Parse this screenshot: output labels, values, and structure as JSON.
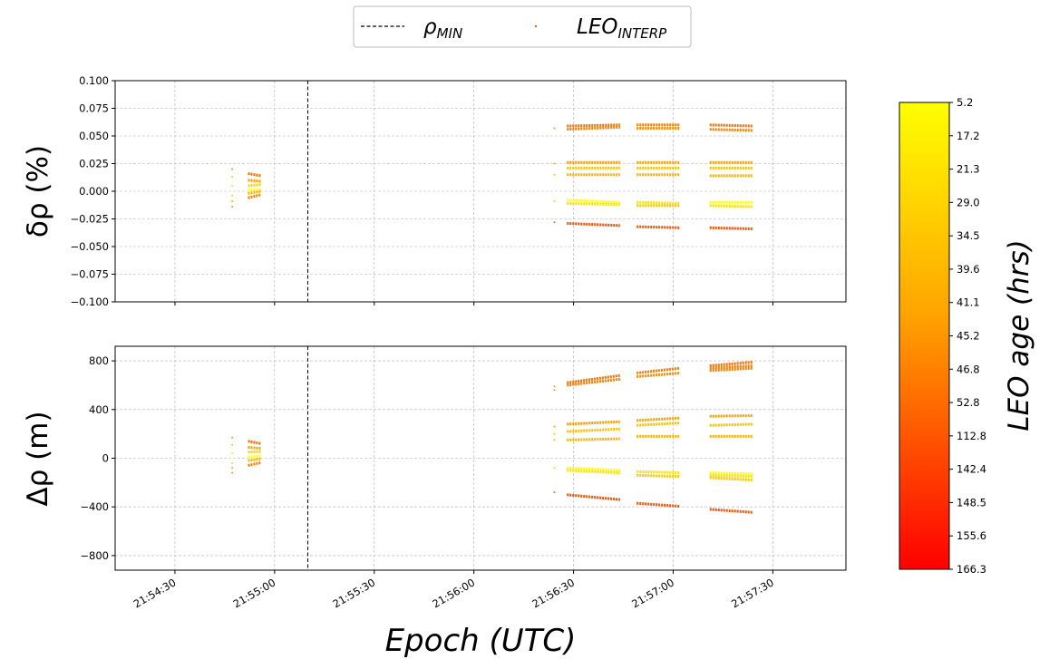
{
  "legend": {
    "entries": [
      {
        "label": "ρ",
        "sub": "MIN",
        "style": "dashed-line",
        "color": "#000000"
      },
      {
        "label": "LEO",
        "sub": "INTERP",
        "style": "point",
        "color": "#ff4500"
      }
    ]
  },
  "xaxis": {
    "label": "Epoch (UTC)",
    "ticks": [
      "21:54:30",
      "21:55:00",
      "21:55:30",
      "21:56:00",
      "21:56:30",
      "21:57:00",
      "21:57:30"
    ],
    "tick_seconds": [
      30,
      60,
      90,
      120,
      150,
      180,
      210
    ],
    "range_seconds": [
      12,
      232
    ]
  },
  "colorbar": {
    "label": "LEO age (hrs)",
    "ticks": [
      "5.2",
      "17.2",
      "21.3",
      "29.0",
      "34.5",
      "39.6",
      "41.1",
      "45.2",
      "46.8",
      "52.8",
      "112.8",
      "142.4",
      "148.5",
      "155.6",
      "166.3"
    ],
    "colors": [
      "#ffff00",
      "#ffa500",
      "#ff0000"
    ]
  },
  "vline_seconds": 70,
  "chart_data": [
    {
      "type": "scatter",
      "ylabel": "δρ (%)",
      "ylim": [
        -0.1,
        0.1
      ],
      "yticks": [
        -0.1,
        -0.075,
        -0.05,
        -0.025,
        0.0,
        0.025,
        0.05,
        0.075,
        0.1
      ],
      "ytick_labels": [
        "−0.100",
        "−0.075",
        "−0.050",
        "−0.025",
        "0.000",
        "0.025",
        "0.050",
        "0.075",
        "0.100"
      ],
      "grid": true,
      "segments": [
        {
          "x": [
            47,
            47.5
          ],
          "y": [
            0.02,
            0.02
          ],
          "color": "#ff8c00"
        },
        {
          "x": [
            47,
            47.5
          ],
          "y": [
            0.013,
            0.013
          ],
          "color": "#ffc000"
        },
        {
          "x": [
            47,
            47.5
          ],
          "y": [
            0.005,
            0.005
          ],
          "color": "#ffe000"
        },
        {
          "x": [
            47,
            47.5
          ],
          "y": [
            -0.004,
            -0.004
          ],
          "color": "#ffd000"
        },
        {
          "x": [
            47,
            47.5
          ],
          "y": [
            -0.009,
            -0.009
          ],
          "color": "#ffa500"
        },
        {
          "x": [
            47,
            47.5
          ],
          "y": [
            -0.014,
            -0.014
          ],
          "color": "#ff8c00"
        },
        {
          "x": [
            52,
            56
          ],
          "y": [
            0.016,
            0.014
          ],
          "color": "#ff6a00"
        },
        {
          "x": [
            52,
            56
          ],
          "y": [
            0.01,
            0.009
          ],
          "color": "#ff9a00"
        },
        {
          "x": [
            52,
            56
          ],
          "y": [
            0.005,
            0.006
          ],
          "color": "#ffd000"
        },
        {
          "x": [
            52,
            56
          ],
          "y": [
            0.001,
            0.002
          ],
          "color": "#ffff20"
        },
        {
          "x": [
            52,
            56
          ],
          "y": [
            -0.002,
            0.0
          ],
          "color": "#ffb000"
        },
        {
          "x": [
            52,
            56
          ],
          "y": [
            -0.006,
            -0.003
          ],
          "color": "#ff8000"
        },
        {
          "x": [
            144,
            144.5
          ],
          "y": [
            0.057,
            0.057
          ],
          "color": "#ff8c00"
        },
        {
          "x": [
            144,
            144.5
          ],
          "y": [
            0.025,
            0.025
          ],
          "color": "#ffa000"
        },
        {
          "x": [
            144,
            144.5
          ],
          "y": [
            0.015,
            0.015
          ],
          "color": "#ffc000"
        },
        {
          "x": [
            144,
            144.5
          ],
          "y": [
            -0.009,
            -0.009
          ],
          "color": "#ffd000"
        },
        {
          "x": [
            144,
            144.5
          ],
          "y": [
            -0.028,
            -0.028
          ],
          "color": "#ff5a00"
        },
        {
          "x": [
            148,
            164
          ],
          "y": [
            0.059,
            0.06
          ],
          "color": "#ff7000"
        },
        {
          "x": [
            148,
            164
          ],
          "y": [
            0.056,
            0.058
          ],
          "color": "#ff8000"
        },
        {
          "x": [
            148,
            164
          ],
          "y": [
            0.026,
            0.026
          ],
          "color": "#ff9a00"
        },
        {
          "x": [
            148,
            164
          ],
          "y": [
            0.021,
            0.021
          ],
          "color": "#ffc000"
        },
        {
          "x": [
            148,
            164
          ],
          "y": [
            0.015,
            0.015
          ],
          "color": "#ffb000"
        },
        {
          "x": [
            148,
            164
          ],
          "y": [
            -0.008,
            -0.01
          ],
          "color": "#ffff00"
        },
        {
          "x": [
            148,
            164
          ],
          "y": [
            -0.011,
            -0.012
          ],
          "color": "#ffe000"
        },
        {
          "x": [
            148,
            164
          ],
          "y": [
            -0.029,
            -0.031
          ],
          "color": "#ff5000"
        },
        {
          "x": [
            169,
            182
          ],
          "y": [
            0.06,
            0.06
          ],
          "color": "#ff7a00"
        },
        {
          "x": [
            169,
            182
          ],
          "y": [
            0.057,
            0.057
          ],
          "color": "#ff8a00"
        },
        {
          "x": [
            169,
            182
          ],
          "y": [
            0.026,
            0.026
          ],
          "color": "#ffa000"
        },
        {
          "x": [
            169,
            182
          ],
          "y": [
            0.021,
            0.021
          ],
          "color": "#ffc000"
        },
        {
          "x": [
            169,
            182
          ],
          "y": [
            0.015,
            0.015
          ],
          "color": "#ffb000"
        },
        {
          "x": [
            169,
            182
          ],
          "y": [
            -0.01,
            -0.011
          ],
          "color": "#ffe000"
        },
        {
          "x": [
            169,
            182
          ],
          "y": [
            -0.013,
            -0.013
          ],
          "color": "#ffc800"
        },
        {
          "x": [
            169,
            182
          ],
          "y": [
            -0.032,
            -0.033
          ],
          "color": "#ff5500"
        },
        {
          "x": [
            191,
            204
          ],
          "y": [
            0.06,
            0.059
          ],
          "color": "#ff7000"
        },
        {
          "x": [
            191,
            204
          ],
          "y": [
            0.056,
            0.055
          ],
          "color": "#ff8000"
        },
        {
          "x": [
            191,
            204
          ],
          "y": [
            0.026,
            0.026
          ],
          "color": "#ffa000"
        },
        {
          "x": [
            191,
            204
          ],
          "y": [
            0.021,
            0.021
          ],
          "color": "#ffc000"
        },
        {
          "x": [
            191,
            204
          ],
          "y": [
            0.014,
            0.014
          ],
          "color": "#ffb000"
        },
        {
          "x": [
            191,
            204
          ],
          "y": [
            -0.01,
            -0.01
          ],
          "color": "#ffff00"
        },
        {
          "x": [
            191,
            204
          ],
          "y": [
            -0.013,
            -0.014
          ],
          "color": "#ffe000"
        },
        {
          "x": [
            191,
            204
          ],
          "y": [
            -0.033,
            -0.034
          ],
          "color": "#ff5000"
        }
      ]
    },
    {
      "type": "scatter",
      "ylabel": "Δρ (m)",
      "ylim": [
        -920,
        920
      ],
      "yticks": [
        -800,
        -400,
        0,
        400,
        800
      ],
      "ytick_labels": [
        "−800",
        "−400",
        "0",
        "400",
        "800"
      ],
      "grid": true,
      "segments": [
        {
          "x": [
            47,
            47.5
          ],
          "y": [
            170,
            170
          ],
          "color": "#ff8c00"
        },
        {
          "x": [
            47,
            47.5
          ],
          "y": [
            110,
            110
          ],
          "color": "#ffc000"
        },
        {
          "x": [
            47,
            47.5
          ],
          "y": [
            40,
            40
          ],
          "color": "#ffe000"
        },
        {
          "x": [
            47,
            47.5
          ],
          "y": [
            -40,
            -40
          ],
          "color": "#ffd000"
        },
        {
          "x": [
            47,
            47.5
          ],
          "y": [
            -80,
            -80
          ],
          "color": "#ffa500"
        },
        {
          "x": [
            47,
            47.5
          ],
          "y": [
            -120,
            -120
          ],
          "color": "#ff8c00"
        },
        {
          "x": [
            52,
            56
          ],
          "y": [
            140,
            120
          ],
          "color": "#ff6a00"
        },
        {
          "x": [
            52,
            56
          ],
          "y": [
            90,
            80
          ],
          "color": "#ff9a00"
        },
        {
          "x": [
            52,
            56
          ],
          "y": [
            50,
            55
          ],
          "color": "#ffd000"
        },
        {
          "x": [
            52,
            56
          ],
          "y": [
            10,
            20
          ],
          "color": "#ffff20"
        },
        {
          "x": [
            52,
            56
          ],
          "y": [
            -20,
            -5
          ],
          "color": "#ffb000"
        },
        {
          "x": [
            52,
            56
          ],
          "y": [
            -60,
            -35
          ],
          "color": "#ff8000"
        },
        {
          "x": [
            144,
            144.5
          ],
          "y": [
            590,
            590
          ],
          "color": "#ff8c00"
        },
        {
          "x": [
            144,
            144.5
          ],
          "y": [
            560,
            560
          ],
          "color": "#ff8c00"
        },
        {
          "x": [
            144,
            144.5
          ],
          "y": [
            260,
            260
          ],
          "color": "#ffa000"
        },
        {
          "x": [
            144,
            144.5
          ],
          "y": [
            200,
            200
          ],
          "color": "#ffc000"
        },
        {
          "x": [
            144,
            144.5
          ],
          "y": [
            150,
            150
          ],
          "color": "#ffb000"
        },
        {
          "x": [
            144,
            144.5
          ],
          "y": [
            -80,
            -80
          ],
          "color": "#ffd000"
        },
        {
          "x": [
            144,
            144.5
          ],
          "y": [
            -280,
            -280
          ],
          "color": "#ff5a00"
        },
        {
          "x": [
            148,
            164
          ],
          "y": [
            620,
            680
          ],
          "color": "#ff7000"
        },
        {
          "x": [
            148,
            164
          ],
          "y": [
            600,
            650
          ],
          "color": "#ff8000"
        },
        {
          "x": [
            148,
            164
          ],
          "y": [
            280,
            300
          ],
          "color": "#ff9a00"
        },
        {
          "x": [
            148,
            164
          ],
          "y": [
            220,
            240
          ],
          "color": "#ffc000"
        },
        {
          "x": [
            148,
            164
          ],
          "y": [
            150,
            160
          ],
          "color": "#ffb000"
        },
        {
          "x": [
            148,
            164
          ],
          "y": [
            -80,
            -100
          ],
          "color": "#ffff00"
        },
        {
          "x": [
            148,
            164
          ],
          "y": [
            -100,
            -120
          ],
          "color": "#ffe000"
        },
        {
          "x": [
            148,
            164
          ],
          "y": [
            -300,
            -340
          ],
          "color": "#ff5000"
        },
        {
          "x": [
            169,
            182
          ],
          "y": [
            700,
            740
          ],
          "color": "#ff7a00"
        },
        {
          "x": [
            169,
            182
          ],
          "y": [
            670,
            700
          ],
          "color": "#ff8a00"
        },
        {
          "x": [
            169,
            182
          ],
          "y": [
            310,
            330
          ],
          "color": "#ffa000"
        },
        {
          "x": [
            169,
            182
          ],
          "y": [
            270,
            290
          ],
          "color": "#ffc000"
        },
        {
          "x": [
            169,
            182
          ],
          "y": [
            180,
            180
          ],
          "color": "#ffb000"
        },
        {
          "x": [
            169,
            182
          ],
          "y": [
            -110,
            -120
          ],
          "color": "#ffe000"
        },
        {
          "x": [
            169,
            182
          ],
          "y": [
            -140,
            -150
          ],
          "color": "#ffc800"
        },
        {
          "x": [
            169,
            182
          ],
          "y": [
            -370,
            -395
          ],
          "color": "#ff5500"
        },
        {
          "x": [
            191,
            204
          ],
          "y": [
            760,
            790
          ],
          "color": "#ff7000"
        },
        {
          "x": [
            191,
            204
          ],
          "y": [
            740,
            760
          ],
          "color": "#ff7a00"
        },
        {
          "x": [
            191,
            204
          ],
          "y": [
            720,
            740
          ],
          "color": "#ff8000"
        },
        {
          "x": [
            191,
            204
          ],
          "y": [
            345,
            350
          ],
          "color": "#ffa000"
        },
        {
          "x": [
            191,
            204
          ],
          "y": [
            270,
            280
          ],
          "color": "#ffc000"
        },
        {
          "x": [
            191,
            204
          ],
          "y": [
            180,
            180
          ],
          "color": "#ffb000"
        },
        {
          "x": [
            191,
            204
          ],
          "y": [
            -120,
            -130
          ],
          "color": "#ffff00"
        },
        {
          "x": [
            191,
            204
          ],
          "y": [
            -140,
            -150
          ],
          "color": "#ffe000"
        },
        {
          "x": [
            191,
            204
          ],
          "y": [
            -160,
            -180
          ],
          "color": "#ffc800"
        },
        {
          "x": [
            191,
            204
          ],
          "y": [
            -420,
            -445
          ],
          "color": "#ff5000"
        }
      ]
    }
  ]
}
